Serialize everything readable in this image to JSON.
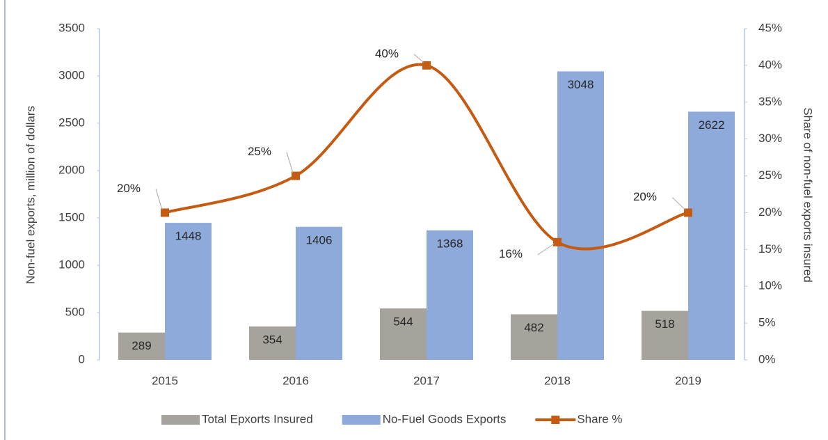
{
  "chart_data": {
    "type": "bar-line",
    "categories": [
      "2015",
      "2016",
      "2017",
      "2018",
      "2019"
    ],
    "ylabel": "Non-fuel exports, million of dollars",
    "y2label": "Share of non-fuel exports insured",
    "ylim": [
      0,
      3500
    ],
    "yticks": [
      0,
      500,
      1000,
      1500,
      2000,
      2500,
      3000,
      3500
    ],
    "y2lim": [
      0,
      45
    ],
    "y2ticks": [
      {
        "value": 0,
        "label": "0%"
      },
      {
        "value": 5,
        "label": "5%"
      },
      {
        "value": 10,
        "label": "10%"
      },
      {
        "value": 15,
        "label": "15%"
      },
      {
        "value": 20,
        "label": "20%"
      },
      {
        "value": 25,
        "label": "25%"
      },
      {
        "value": 30,
        "label": "30%"
      },
      {
        "value": 35,
        "label": "35%"
      },
      {
        "value": 40,
        "label": "40%"
      },
      {
        "value": 45,
        "label": "45%"
      }
    ],
    "legend": "bottom",
    "series": [
      {
        "name": "Total Epxorts Insured",
        "type": "bar",
        "color": "#a6a29c",
        "values": [
          289,
          354,
          544,
          482,
          518
        ]
      },
      {
        "name": "No-Fuel Goods Exports",
        "type": "bar",
        "color": "#8eaadb",
        "values": [
          1448,
          1406,
          1368,
          3048,
          2622
        ]
      },
      {
        "name": "Share %",
        "type": "line",
        "axis": "y2",
        "color": "#c55a11",
        "values": [
          20,
          25,
          40,
          16,
          20
        ],
        "value_labels": [
          "20%",
          "25%",
          "40%",
          "16%",
          "20%"
        ]
      }
    ]
  }
}
